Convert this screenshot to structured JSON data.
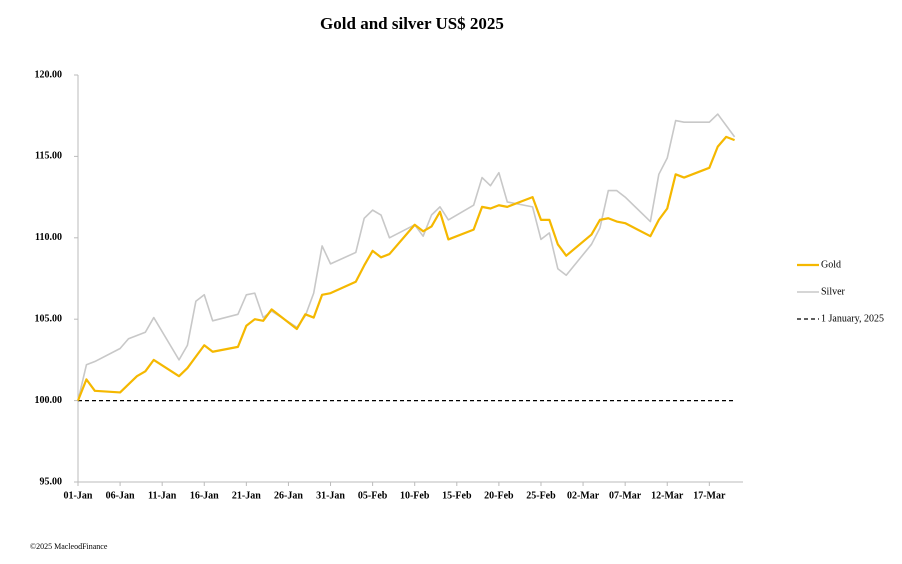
{
  "chart_data": {
    "type": "line",
    "title": "Gold and silver  US$ 2025",
    "footer": "©2025 MacleodFinance",
    "xlim": [
      0,
      79
    ],
    "xticks": [
      {
        "value": 0,
        "label": "01-Jan"
      },
      {
        "value": 5,
        "label": "06-Jan"
      },
      {
        "value": 10,
        "label": "11-Jan"
      },
      {
        "value": 15,
        "label": "16-Jan"
      },
      {
        "value": 20,
        "label": "21-Jan"
      },
      {
        "value": 25,
        "label": "26-Jan"
      },
      {
        "value": 30,
        "label": "31-Jan"
      },
      {
        "value": 35,
        "label": "05-Feb"
      },
      {
        "value": 40,
        "label": "10-Feb"
      },
      {
        "value": 45,
        "label": "15-Feb"
      },
      {
        "value": 50,
        "label": "20-Feb"
      },
      {
        "value": 55,
        "label": "25-Feb"
      },
      {
        "value": 60,
        "label": "02-Mar"
      },
      {
        "value": 65,
        "label": "07-Mar"
      },
      {
        "value": 70,
        "label": "12-Mar"
      },
      {
        "value": 75,
        "label": "17-Mar"
      }
    ],
    "ylim": [
      95,
      120
    ],
    "yticks": [
      {
        "value": 95,
        "label": "95.00"
      },
      {
        "value": 100,
        "label": "100.00"
      },
      {
        "value": 105,
        "label": "105.00"
      },
      {
        "value": 110,
        "label": "110.00"
      },
      {
        "value": 115,
        "label": "115.00"
      },
      {
        "value": 120,
        "label": "120.00"
      }
    ],
    "x": [
      0,
      1,
      2,
      5,
      6,
      7,
      8,
      9,
      12,
      13,
      14,
      15,
      16,
      19,
      20,
      21,
      22,
      23,
      26,
      27,
      28,
      29,
      30,
      33,
      34,
      35,
      36,
      37,
      40,
      41,
      42,
      43,
      44,
      47,
      48,
      49,
      50,
      51,
      54,
      55,
      56,
      57,
      58,
      61,
      62,
      63,
      64,
      65,
      68,
      69,
      70,
      71,
      72,
      75,
      76,
      77,
      78
    ],
    "series": [
      {
        "name": "Gold",
        "color": "#f5b800",
        "width": 2.2,
        "values": [
          100,
          101.3,
          100.6,
          100.5,
          101.0,
          101.5,
          101.8,
          102.5,
          101.5,
          102.0,
          102.7,
          103.4,
          103.0,
          103.3,
          104.6,
          105.0,
          104.9,
          105.6,
          104.4,
          105.3,
          105.1,
          106.5,
          106.6,
          107.3,
          108.3,
          109.2,
          108.8,
          109.0,
          110.8,
          110.4,
          110.7,
          111.6,
          109.9,
          110.5,
          111.9,
          111.8,
          112.0,
          111.9,
          112.5,
          111.1,
          111.1,
          109.6,
          108.9,
          110.2,
          111.1,
          111.2,
          111.0,
          110.9,
          110.1,
          111.1,
          111.8,
          113.9,
          113.7,
          114.3,
          115.6,
          116.2,
          116.0
        ]
      },
      {
        "name": "Silver",
        "color": "#c8c8c8",
        "width": 1.6,
        "values": [
          100,
          102.2,
          102.4,
          103.2,
          103.8,
          104.0,
          104.2,
          105.1,
          102.5,
          103.4,
          106.1,
          106.5,
          104.9,
          105.3,
          106.5,
          106.6,
          105.1,
          105.5,
          104.5,
          105.2,
          106.6,
          109.5,
          108.4,
          109.1,
          111.2,
          111.7,
          111.4,
          110.0,
          110.8,
          110.1,
          111.4,
          111.9,
          111.1,
          112.0,
          113.7,
          113.2,
          114.0,
          112.2,
          111.9,
          109.9,
          110.3,
          108.1,
          107.7,
          109.6,
          110.6,
          112.9,
          112.9,
          112.5,
          111.0,
          113.9,
          114.9,
          117.2,
          117.1,
          117.1,
          117.6,
          116.9,
          116.2
        ]
      }
    ],
    "reference_line": {
      "name": "1 January, 2025",
      "value": 100,
      "color": "#000000"
    },
    "legend": "right"
  }
}
